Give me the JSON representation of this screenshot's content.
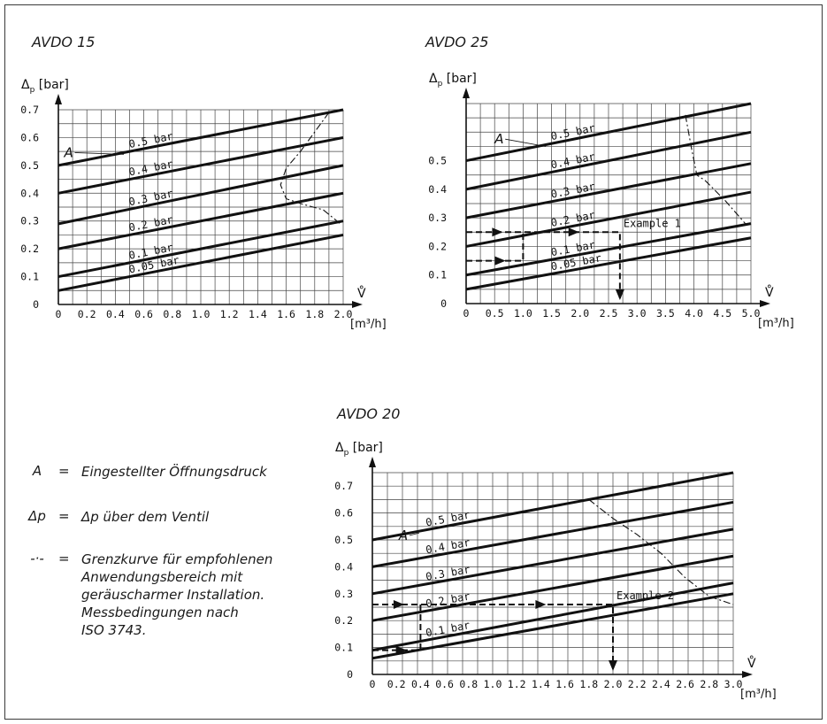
{
  "chart_data": [
    {
      "type": "line",
      "title": "AVDO 15",
      "ylabel": "Δp [bar]",
      "xlabel_symbol": "V̊",
      "xlabel_unit": "[m³/h]",
      "xlim": [
        0,
        2.0
      ],
      "ylim": [
        0,
        0.7
      ],
      "x_ticks": [
        "0",
        "0.2",
        "0.4",
        "0.6",
        "0.8",
        "1.0",
        "1.2",
        "1.4",
        "1.6",
        "1.8",
        "2.0"
      ],
      "y_ticks": [
        "0",
        "0.1",
        "0.2",
        "0.3",
        "0.4",
        "0.5",
        "0.6",
        "0.7"
      ],
      "series": [
        {
          "name": "0.5 bar",
          "x": [
            0,
            2.0
          ],
          "y": [
            0.5,
            0.7
          ]
        },
        {
          "name": "0.4 bar",
          "x": [
            0,
            2.0
          ],
          "y": [
            0.4,
            0.6
          ]
        },
        {
          "name": "0.3 bar",
          "x": [
            0,
            2.0
          ],
          "y": [
            0.29,
            0.5
          ]
        },
        {
          "name": "0.2 bar",
          "x": [
            0,
            2.0
          ],
          "y": [
            0.2,
            0.4
          ]
        },
        {
          "name": "0.1 bar",
          "x": [
            0,
            2.0
          ],
          "y": [
            0.1,
            0.3
          ]
        },
        {
          "name": "0.05 bar",
          "x": [
            0,
            2.0
          ],
          "y": [
            0.05,
            0.25
          ]
        }
      ],
      "limit_curve": {
        "x": [
          1.9,
          1.8,
          1.7,
          1.6,
          1.56,
          1.6,
          1.72,
          1.86,
          1.98
        ],
        "y": [
          0.69,
          0.62,
          0.55,
          0.49,
          0.43,
          0.38,
          0.36,
          0.34,
          0.29
        ]
      },
      "annotation_A": "A",
      "grid": true
    },
    {
      "type": "line",
      "title": "AVDO 25",
      "ylabel": "Δp [bar]",
      "xlabel_symbol": "V̊",
      "xlabel_unit": "[m³/h]",
      "xlim": [
        0,
        5.0
      ],
      "ylim": [
        0,
        0.7
      ],
      "x_ticks": [
        "0",
        "0.5",
        "1.0",
        "1.5",
        "2.0",
        "2.5",
        "3.0",
        "3.5",
        "4.0",
        "4.5",
        "5.0"
      ],
      "y_ticks": [
        "0",
        "0.1",
        "0.2",
        "0.3",
        "0.4",
        "0.5"
      ],
      "series": [
        {
          "name": "0.5 bar",
          "x": [
            0,
            5.0
          ],
          "y": [
            0.5,
            0.7
          ]
        },
        {
          "name": "0.4 bar",
          "x": [
            0,
            5.0
          ],
          "y": [
            0.4,
            0.6
          ]
        },
        {
          "name": "0.3 bar",
          "x": [
            0,
            5.0
          ],
          "y": [
            0.3,
            0.49
          ]
        },
        {
          "name": "0.2 bar",
          "x": [
            0,
            5.0
          ],
          "y": [
            0.2,
            0.39
          ]
        },
        {
          "name": "0.1 bar",
          "x": [
            0,
            5.0
          ],
          "y": [
            0.1,
            0.28
          ]
        },
        {
          "name": "0.05 bar",
          "x": [
            0,
            5.0
          ],
          "y": [
            0.05,
            0.23
          ]
        }
      ],
      "limit_curve": {
        "x": [
          3.85,
          3.95,
          4.05,
          4.2,
          4.55,
          4.9
        ],
        "y": [
          0.66,
          0.55,
          0.45,
          0.43,
          0.36,
          0.28
        ]
      },
      "example": {
        "label": "Example 1",
        "x": 2.7,
        "y_start": 0.25,
        "y_start2": 0.15,
        "branch_x": 1.0
      },
      "annotation_A": "A",
      "grid": true
    },
    {
      "type": "line",
      "title": "AVDO 20",
      "ylabel": "Δp [bar]",
      "xlabel_symbol": "V̊",
      "xlabel_unit": "[m³/h]",
      "xlim": [
        0,
        3.0
      ],
      "ylim": [
        0,
        0.75
      ],
      "x_ticks": [
        "0",
        "0.2",
        "0.4",
        "0.6",
        "0.8",
        "1.0",
        "1.2",
        "1.4",
        "1.6",
        "1.8",
        "2.0",
        "2.2",
        "2.4",
        "2.6",
        "2.8",
        "3.0"
      ],
      "y_ticks": [
        "0",
        "0.1",
        "0.2",
        "0.3",
        "0.4",
        "0.5",
        "0.6",
        "0.7"
      ],
      "series": [
        {
          "name": "0.5 bar",
          "x": [
            0,
            3.0
          ],
          "y": [
            0.5,
            0.75
          ]
        },
        {
          "name": "0.4 bar",
          "x": [
            0,
            3.0
          ],
          "y": [
            0.4,
            0.64
          ]
        },
        {
          "name": "0.3 bar",
          "x": [
            0,
            3.0
          ],
          "y": [
            0.3,
            0.54
          ]
        },
        {
          "name": "0.2 bar",
          "x": [
            0,
            3.0
          ],
          "y": [
            0.2,
            0.44
          ]
        },
        {
          "name": "0.1 bar",
          "x": [
            0,
            3.0
          ],
          "y": [
            0.09,
            0.34
          ]
        },
        {
          "name": "",
          "x": [
            0,
            3.0
          ],
          "y": [
            0.06,
            0.3
          ]
        }
      ],
      "limit_curve": {
        "x": [
          1.8,
          2.0,
          2.2,
          2.4,
          2.6,
          2.8,
          3.0
        ],
        "y": [
          0.65,
          0.58,
          0.52,
          0.45,
          0.36,
          0.29,
          0.26
        ]
      },
      "example": {
        "label": "Example 2",
        "x": 2.0,
        "y_start": 0.26,
        "y_start2": 0.09,
        "branch_x": 0.4
      },
      "annotation_A": "A",
      "grid": true
    }
  ],
  "legend": [
    {
      "symbol": "A",
      "eq": "=",
      "text": "Eingestellter Öffnungsdruck"
    },
    {
      "symbol": "Δp",
      "eq": "=",
      "text": "Δp über dem Ventil"
    },
    {
      "symbol": "-·-",
      "eq": "=",
      "lines": [
        "Grenzkurve für empfohlenen",
        "Anwendungsbereich mit",
        "geräuscharmer Installation.",
        "Messbedingungen nach",
        "ISO 3743."
      ]
    }
  ]
}
